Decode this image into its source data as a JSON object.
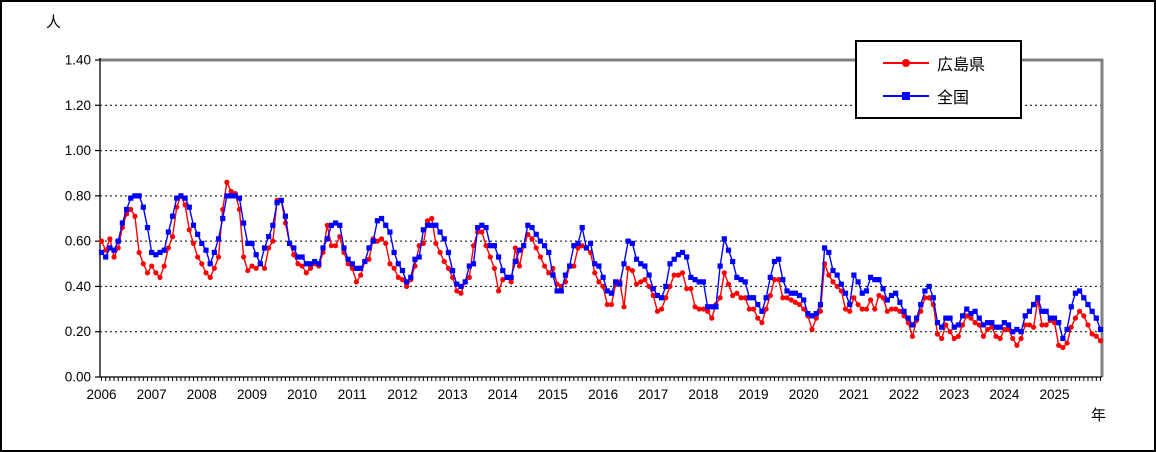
{
  "y_axis": {
    "unit": "人",
    "tick_labels": [
      "1.40",
      "1.20",
      "1.00",
      "0.80",
      "0.60",
      "0.40",
      "0.20",
      "0.00"
    ]
  },
  "x_axis": {
    "unit": "年",
    "tick_labels": [
      "2006",
      "2007",
      "2008",
      "2009",
      "2010",
      "2011",
      "2012",
      "2013",
      "2014",
      "2015",
      "2016",
      "2017",
      "2018",
      "2019",
      "2020",
      "2021",
      "2022",
      "2023",
      "2024",
      "2025"
    ]
  },
  "legend": {
    "items": [
      {
        "label": "広島県",
        "color": "#ff0000",
        "marker": "circle"
      },
      {
        "label": "全国",
        "color": "#0000ff",
        "marker": "square"
      }
    ]
  },
  "colors": {
    "hiroshima": "#ff0000",
    "national": "#0000ff",
    "gridline": "#000000",
    "plot_border_gray": "#808080",
    "axis": "#000000"
  },
  "chart_data": {
    "type": "line",
    "title": "",
    "ylabel": "人",
    "xlabel": "年",
    "ylim": [
      0.0,
      1.4
    ],
    "y_tick_step": 0.2,
    "grid": "horizontal-dashed",
    "legend_position": "top-right-inside",
    "frequency": "monthly",
    "x_start": "2006-01",
    "x_end": "2025-12",
    "categories_years": [
      2006,
      2007,
      2008,
      2009,
      2010,
      2011,
      2012,
      2013,
      2014,
      2015,
      2016,
      2017,
      2018,
      2019,
      2020,
      2021,
      2022,
      2023,
      2024,
      2025
    ],
    "series": [
      {
        "name": "広島県",
        "color": "#ff0000",
        "marker": "circle",
        "values": [
          0.6,
          0.56,
          0.61,
          0.53,
          0.57,
          0.66,
          0.72,
          0.74,
          0.71,
          0.55,
          0.5,
          0.46,
          0.49,
          0.46,
          0.44,
          0.49,
          0.57,
          0.62,
          0.75,
          0.8,
          0.76,
          0.65,
          0.59,
          0.53,
          0.5,
          0.46,
          0.44,
          0.48,
          0.53,
          0.74,
          0.86,
          0.82,
          0.81,
          0.74,
          0.53,
          0.47,
          0.49,
          0.48,
          0.5,
          0.48,
          0.57,
          0.6,
          0.78,
          0.78,
          0.68,
          0.59,
          0.54,
          0.5,
          0.49,
          0.46,
          0.48,
          0.5,
          0.49,
          0.55,
          0.67,
          0.58,
          0.58,
          0.62,
          0.55,
          0.5,
          0.48,
          0.42,
          0.45,
          0.51,
          0.52,
          0.61,
          0.6,
          0.61,
          0.59,
          0.5,
          0.48,
          0.44,
          0.43,
          0.4,
          0.43,
          0.49,
          0.58,
          0.59,
          0.69,
          0.7,
          0.59,
          0.55,
          0.51,
          0.48,
          0.44,
          0.38,
          0.37,
          0.42,
          0.44,
          0.58,
          0.64,
          0.64,
          0.58,
          0.53,
          0.48,
          0.38,
          0.43,
          0.44,
          0.42,
          0.57,
          0.49,
          0.58,
          0.63,
          0.61,
          0.57,
          0.53,
          0.49,
          0.46,
          0.48,
          0.41,
          0.4,
          0.42,
          0.49,
          0.49,
          0.57,
          0.58,
          0.57,
          0.55,
          0.46,
          0.42,
          0.4,
          0.32,
          0.32,
          0.41,
          0.42,
          0.31,
          0.48,
          0.47,
          0.41,
          0.42,
          0.43,
          0.4,
          0.36,
          0.29,
          0.3,
          0.35,
          0.4,
          0.45,
          0.45,
          0.46,
          0.39,
          0.39,
          0.31,
          0.3,
          0.3,
          0.29,
          0.26,
          0.32,
          0.35,
          0.46,
          0.41,
          0.36,
          0.37,
          0.35,
          0.35,
          0.3,
          0.3,
          0.26,
          0.24,
          0.3,
          0.36,
          0.43,
          0.43,
          0.35,
          0.35,
          0.34,
          0.33,
          0.32,
          0.3,
          0.27,
          0.21,
          0.26,
          0.29,
          0.5,
          0.45,
          0.42,
          0.4,
          0.38,
          0.3,
          0.29,
          0.35,
          0.32,
          0.3,
          0.3,
          0.34,
          0.3,
          0.36,
          0.35,
          0.29,
          0.3,
          0.3,
          0.29,
          0.27,
          0.24,
          0.18,
          0.25,
          0.29,
          0.35,
          0.35,
          0.32,
          0.19,
          0.17,
          0.23,
          0.2,
          0.17,
          0.18,
          0.23,
          0.27,
          0.26,
          0.24,
          0.23,
          0.18,
          0.21,
          0.22,
          0.18,
          0.17,
          0.21,
          0.21,
          0.17,
          0.14,
          0.17,
          0.23,
          0.23,
          0.22,
          0.34,
          0.23,
          0.23,
          0.25,
          0.24,
          0.14,
          0.13,
          0.15,
          0.22,
          0.26,
          0.29,
          0.27,
          0.23,
          0.19,
          0.18,
          0.16
        ]
      },
      {
        "name": "全国",
        "color": "#0000ff",
        "marker": "square",
        "values": [
          0.55,
          0.53,
          0.57,
          0.56,
          0.6,
          0.68,
          0.74,
          0.79,
          0.8,
          0.8,
          0.75,
          0.66,
          0.55,
          0.54,
          0.55,
          0.56,
          0.64,
          0.71,
          0.79,
          0.8,
          0.79,
          0.75,
          0.67,
          0.63,
          0.59,
          0.56,
          0.5,
          0.55,
          0.61,
          0.7,
          0.8,
          0.8,
          0.8,
          0.79,
          0.68,
          0.59,
          0.59,
          0.54,
          0.5,
          0.57,
          0.62,
          0.67,
          0.77,
          0.78,
          0.71,
          0.59,
          0.57,
          0.53,
          0.53,
          0.5,
          0.5,
          0.51,
          0.5,
          0.57,
          0.61,
          0.67,
          0.68,
          0.67,
          0.57,
          0.52,
          0.5,
          0.48,
          0.48,
          0.51,
          0.57,
          0.6,
          0.69,
          0.7,
          0.67,
          0.64,
          0.55,
          0.5,
          0.47,
          0.42,
          0.44,
          0.52,
          0.53,
          0.65,
          0.67,
          0.67,
          0.67,
          0.64,
          0.61,
          0.55,
          0.47,
          0.41,
          0.4,
          0.42,
          0.49,
          0.5,
          0.66,
          0.67,
          0.66,
          0.58,
          0.58,
          0.53,
          0.47,
          0.44,
          0.44,
          0.51,
          0.56,
          0.58,
          0.67,
          0.66,
          0.63,
          0.6,
          0.58,
          0.55,
          0.45,
          0.38,
          0.38,
          0.45,
          0.49,
          0.58,
          0.59,
          0.66,
          0.57,
          0.59,
          0.5,
          0.49,
          0.44,
          0.38,
          0.37,
          0.42,
          0.41,
          0.5,
          0.6,
          0.59,
          0.52,
          0.5,
          0.49,
          0.45,
          0.39,
          0.36,
          0.35,
          0.4,
          0.5,
          0.52,
          0.54,
          0.55,
          0.53,
          0.44,
          0.43,
          0.42,
          0.42,
          0.31,
          0.31,
          0.31,
          0.49,
          0.61,
          0.56,
          0.51,
          0.44,
          0.43,
          0.42,
          0.35,
          0.35,
          0.32,
          0.29,
          0.35,
          0.44,
          0.51,
          0.52,
          0.43,
          0.38,
          0.37,
          0.37,
          0.36,
          0.34,
          0.28,
          0.27,
          0.28,
          0.32,
          0.57,
          0.55,
          0.47,
          0.45,
          0.41,
          0.37,
          0.32,
          0.45,
          0.42,
          0.37,
          0.38,
          0.44,
          0.43,
          0.43,
          0.39,
          0.34,
          0.36,
          0.37,
          0.33,
          0.29,
          0.26,
          0.23,
          0.26,
          0.32,
          0.38,
          0.4,
          0.35,
          0.24,
          0.22,
          0.26,
          0.26,
          0.22,
          0.23,
          0.27,
          0.3,
          0.28,
          0.29,
          0.26,
          0.23,
          0.24,
          0.24,
          0.22,
          0.22,
          0.24,
          0.23,
          0.2,
          0.21,
          0.2,
          0.27,
          0.29,
          0.32,
          0.35,
          0.29,
          0.29,
          0.26,
          0.26,
          0.24,
          0.17,
          0.21,
          0.31,
          0.37,
          0.38,
          0.35,
          0.32,
          0.29,
          0.26,
          0.21
        ]
      }
    ]
  }
}
